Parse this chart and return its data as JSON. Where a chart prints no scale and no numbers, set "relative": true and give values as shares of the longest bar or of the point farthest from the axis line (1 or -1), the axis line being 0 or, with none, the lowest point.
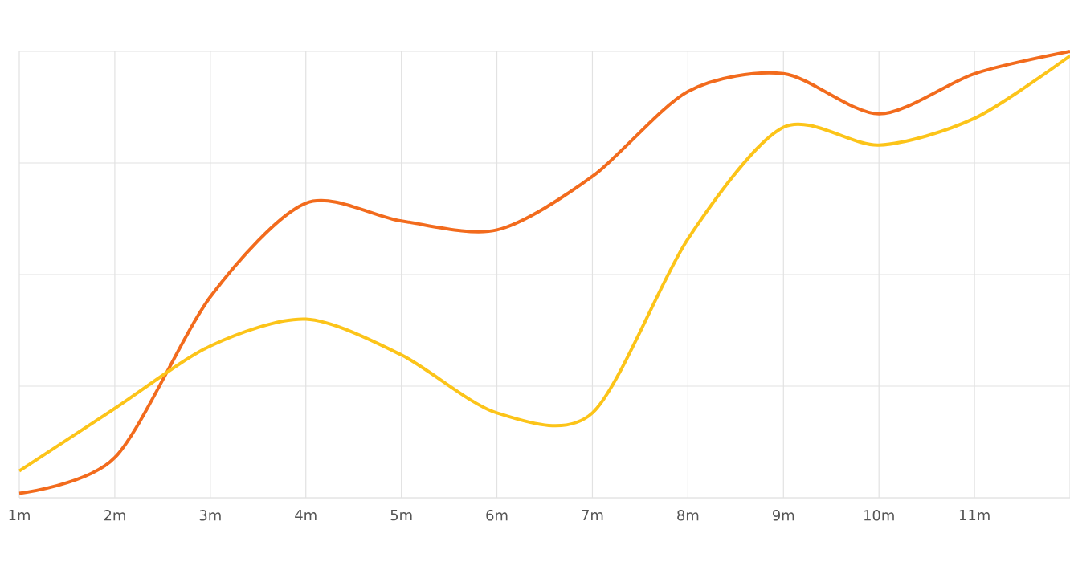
{
  "chart_data": {
    "type": "line",
    "relative": true,
    "categories": [
      "1m",
      "2m",
      "3m",
      "4m",
      "5m",
      "6m",
      "7m",
      "8m",
      "9m",
      "10m",
      "11m",
      null
    ],
    "series": [
      {
        "color": "#f26b1d",
        "values": [
          0.01,
          0.09,
          0.45,
          0.66,
          0.62,
          0.6,
          0.72,
          0.91,
          0.95,
          0.86,
          0.95,
          1.0
        ]
      },
      {
        "color": "#fcc419",
        "values": [
          0.06,
          0.2,
          0.34,
          0.4,
          0.32,
          0.19,
          0.19,
          0.58,
          0.83,
          0.79,
          0.85,
          0.99
        ]
      }
    ],
    "grid": true,
    "marker": "none",
    "line_style": "solid"
  }
}
